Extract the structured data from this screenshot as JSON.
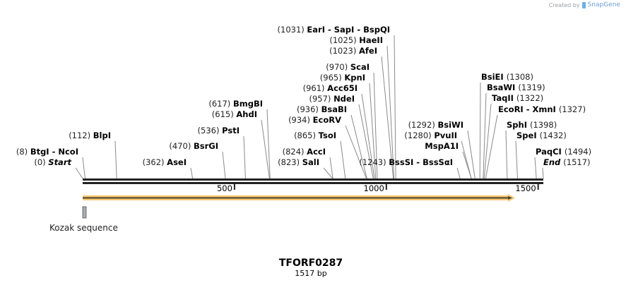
{
  "credit": {
    "prefix": "Created by",
    "brand": "SnapGene"
  },
  "sequence": {
    "name": "TFORF0287",
    "length_label": "1517 bp",
    "length_bp": 1517
  },
  "ruler": {
    "ticks": [
      {
        "bp": 500,
        "label": "500"
      },
      {
        "bp": 1000,
        "label": "1000"
      },
      {
        "bp": 1500,
        "label": "1500"
      }
    ]
  },
  "sites": [
    {
      "pos": "(1031)",
      "name": "EarI  - SapI  - BspQI",
      "bp": 1031,
      "side": "left"
    },
    {
      "pos": "(1025)",
      "name": "HaeII",
      "bp": 1025,
      "side": "left"
    },
    {
      "pos": "(1023)",
      "name": "AfeI",
      "bp": 1023,
      "side": "left"
    },
    {
      "pos": "(970)",
      "name": "ScaI",
      "bp": 970,
      "side": "left"
    },
    {
      "pos": "(965)",
      "name": "KpnI",
      "bp": 965,
      "side": "left"
    },
    {
      "pos": "(961)",
      "name": "Acc65I",
      "bp": 961,
      "side": "left"
    },
    {
      "pos": "(957)",
      "name": "NdeI",
      "bp": 957,
      "side": "left"
    },
    {
      "pos": "(936)",
      "name": "BsaBI",
      "bp": 936,
      "side": "left"
    },
    {
      "pos": "(934)",
      "name": "EcoRV",
      "bp": 934,
      "side": "left"
    },
    {
      "pos": "(865)",
      "name": "TsoI",
      "bp": 865,
      "side": "left"
    },
    {
      "pos": "(824)",
      "name": "AccI",
      "bp": 824,
      "side": "left"
    },
    {
      "pos": "(823)",
      "name": "SalI",
      "bp": 823,
      "side": "left"
    },
    {
      "pos": "(617)",
      "name": "BmgBI",
      "bp": 617,
      "side": "left"
    },
    {
      "pos": "(615)",
      "name": "AhdI",
      "bp": 615,
      "side": "left"
    },
    {
      "pos": "(536)",
      "name": "PstI",
      "bp": 536,
      "side": "left"
    },
    {
      "pos": "(470)",
      "name": "BsrGI",
      "bp": 470,
      "side": "left"
    },
    {
      "pos": "(362)",
      "name": "AseI",
      "bp": 362,
      "side": "left"
    },
    {
      "pos": "(112)",
      "name": "BlpI",
      "bp": 112,
      "side": "left"
    },
    {
      "pos": "(8)",
      "name": "BtgI  - NcoI",
      "bp": 8,
      "side": "left"
    },
    {
      "pos": "(0)",
      "name": "Start",
      "bp": 0,
      "side": "left",
      "italic": true
    },
    {
      "pos": "(1243)",
      "name": "BssSI  - BssSαI",
      "bp": 1243,
      "side": "left"
    },
    {
      "pos": "(1292)",
      "name": "BsiWI",
      "bp": 1292,
      "side": "left"
    },
    {
      "pos": "(1280)",
      "name": "PvuII",
      "bp": 1280,
      "side": "left"
    },
    {
      "pos": "",
      "name": "MspA1I",
      "bp": 1280,
      "side": "left"
    },
    {
      "pos": "(1308)",
      "name": "BsiEI",
      "bp": 1308,
      "side": "right"
    },
    {
      "pos": "(1319)",
      "name": "BsaWI",
      "bp": 1319,
      "side": "right"
    },
    {
      "pos": "(1322)",
      "name": "TaqII",
      "bp": 1322,
      "side": "right"
    },
    {
      "pos": "(1327)",
      "name": "EcoRI  - XmnI",
      "bp": 1327,
      "side": "right"
    },
    {
      "pos": "(1398)",
      "name": "SphI",
      "bp": 1398,
      "side": "right"
    },
    {
      "pos": "(1432)",
      "name": "SpeI",
      "bp": 1432,
      "side": "right"
    },
    {
      "pos": "(1494)",
      "name": "PaqCI",
      "bp": 1494,
      "side": "right"
    },
    {
      "pos": "(1517)",
      "name": "End",
      "bp": 1517,
      "side": "right",
      "italic": true
    }
  ],
  "features": [
    {
      "name": "ORF",
      "type": "arrow",
      "start": 0,
      "end": 1420,
      "color": "#f7c873",
      "line_color": "#4a4030"
    },
    {
      "name": "Kozak sequence",
      "type": "box",
      "start": 0,
      "end": 10,
      "color": "#a8acb4"
    }
  ],
  "colors": {
    "backbone": "#222222",
    "site_line": "#8a8a8a",
    "orf_fill": "#f7c873"
  }
}
